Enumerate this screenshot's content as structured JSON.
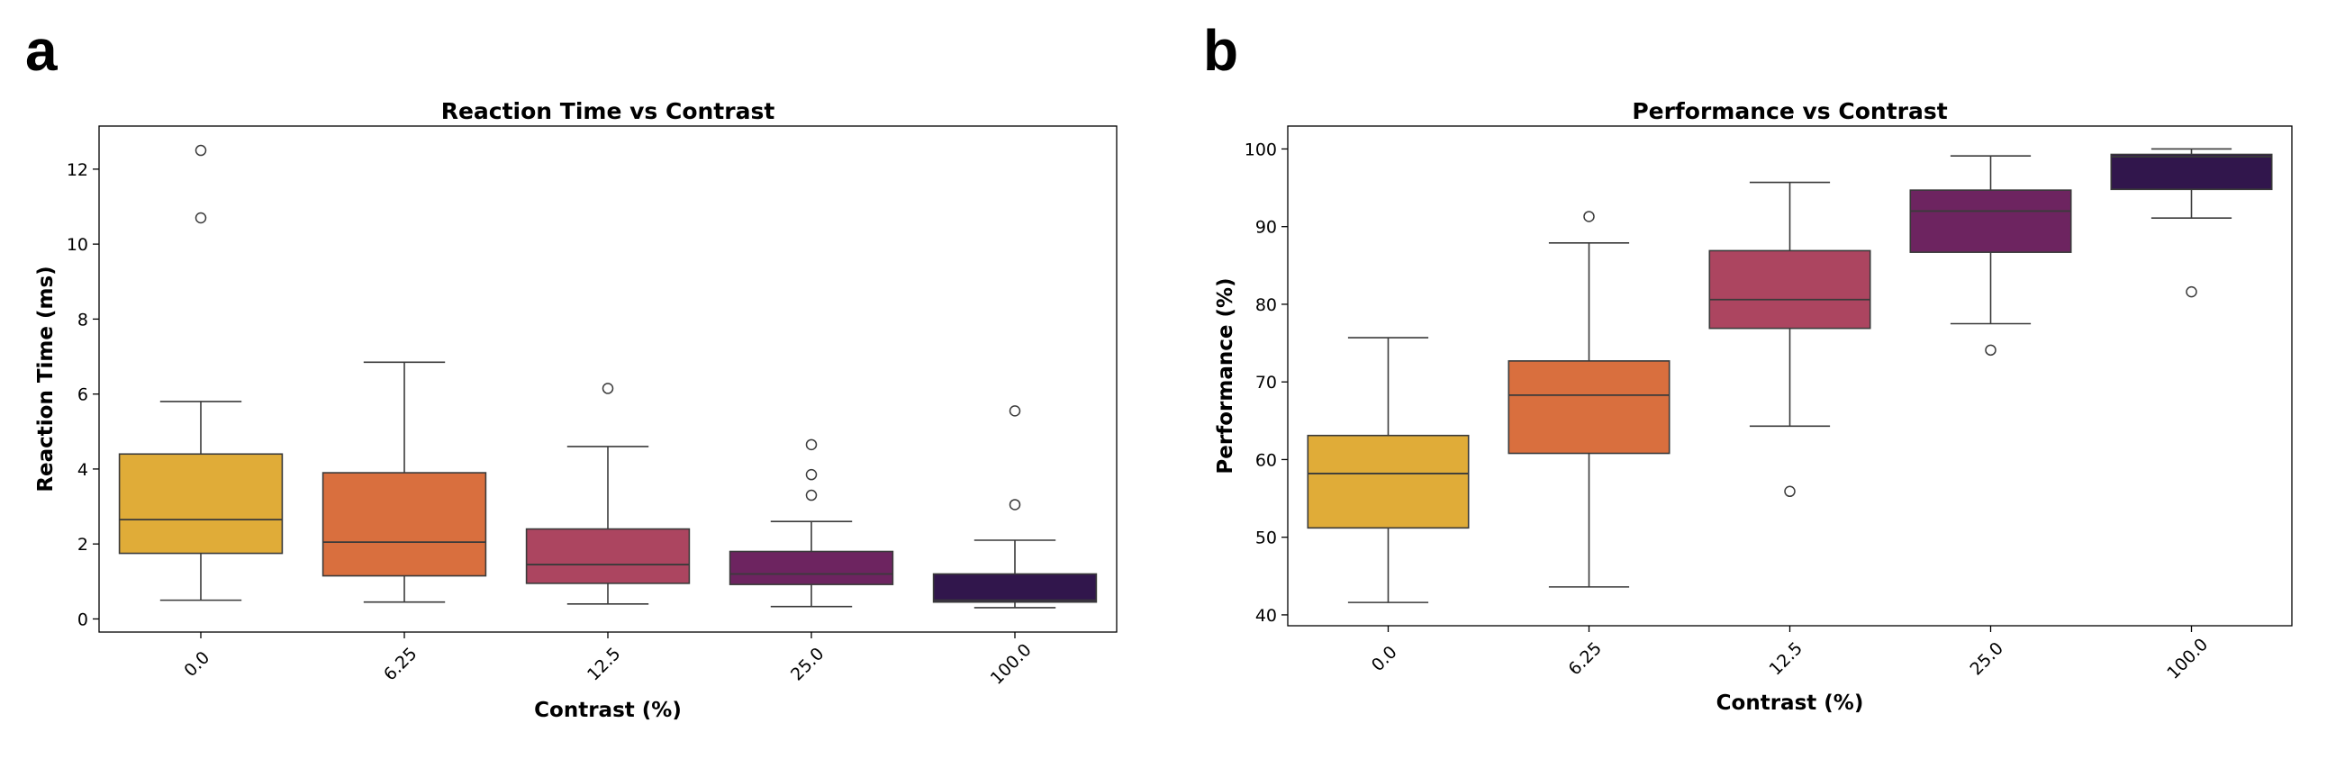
{
  "chart_data": [
    {
      "panel_label": "a",
      "type": "box",
      "title": "Reaction Time vs Contrast",
      "xlabel": "Contrast (%)",
      "ylabel": "Reaction Time (ms)",
      "categories": [
        "0.0",
        "6.25",
        "12.5",
        "25.0",
        "100.0"
      ],
      "ylim": [
        -0.35,
        13.15
      ],
      "yticks": [
        0,
        2,
        4,
        6,
        8,
        10,
        12
      ],
      "box_colors": [
        "#e0ac38",
        "#d96f3e",
        "#ac4560",
        "#6d2460",
        "#31164c"
      ],
      "boxes": [
        {
          "whisker_low": 0.5,
          "q1": 1.75,
          "median": 2.65,
          "q3": 4.4,
          "whisker_high": 5.8,
          "outliers": [
            10.7,
            12.5
          ]
        },
        {
          "whisker_low": 0.45,
          "q1": 1.15,
          "median": 2.05,
          "q3": 3.9,
          "whisker_high": 6.85,
          "outliers": []
        },
        {
          "whisker_low": 0.4,
          "q1": 0.95,
          "median": 1.45,
          "q3": 2.4,
          "whisker_high": 4.6,
          "outliers": [
            6.15
          ]
        },
        {
          "whisker_low": 0.33,
          "q1": 0.92,
          "median": 1.2,
          "q3": 1.8,
          "whisker_high": 2.6,
          "outliers": [
            3.3,
            3.85,
            4.65
          ]
        },
        {
          "whisker_low": 0.3,
          "q1": 0.45,
          "median": 0.5,
          "q3": 1.2,
          "whisker_high": 2.1,
          "outliers": [
            3.05,
            5.55
          ]
        }
      ]
    },
    {
      "panel_label": "b",
      "type": "box",
      "title": "Performance vs Contrast",
      "xlabel": "Contrast (%)",
      "ylabel": "Performance (%)",
      "categories": [
        "0.0",
        "6.25",
        "12.5",
        "25.0",
        "100.0"
      ],
      "ylim": [
        38.6,
        102.95
      ],
      "yticks": [
        40,
        50,
        60,
        70,
        80,
        90,
        100
      ],
      "box_colors": [
        "#e0ac38",
        "#d96f3e",
        "#ac4560",
        "#6d2460",
        "#31164c"
      ],
      "boxes": [
        {
          "whisker_low": 41.6,
          "q1": 51.2,
          "median": 58.2,
          "q3": 63.1,
          "whisker_high": 75.7,
          "outliers": []
        },
        {
          "whisker_low": 43.6,
          "q1": 60.8,
          "median": 68.3,
          "q3": 72.7,
          "whisker_high": 87.9,
          "outliers": [
            91.3
          ]
        },
        {
          "whisker_low": 64.3,
          "q1": 76.9,
          "median": 80.6,
          "q3": 86.9,
          "whisker_high": 95.7,
          "outliers": [
            55.9
          ]
        },
        {
          "whisker_low": 77.5,
          "q1": 86.7,
          "median": 92.0,
          "q3": 94.7,
          "whisker_high": 99.1,
          "outliers": [
            74.1
          ]
        },
        {
          "whisker_low": 91.1,
          "q1": 94.8,
          "median": 99.0,
          "q3": 99.3,
          "whisker_high": 100.0,
          "outliers": [
            81.6
          ]
        }
      ]
    }
  ]
}
